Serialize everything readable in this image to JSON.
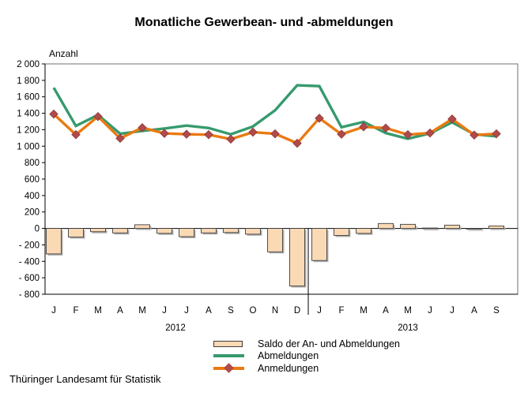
{
  "title": "Monatliche Gewerbean- und -abmeldungen",
  "source": "Thüringer Landesamt für Statistik",
  "chart_data": {
    "type": "bar+line",
    "title": "Monatliche Gewerbean- und -abmeldungen",
    "ylabel": "Anzahl",
    "xlabel": "",
    "ylim": [
      -800,
      2000
    ],
    "ytick_step": 200,
    "ytick_labels": [
      "2 000",
      "1 800",
      "1 600",
      "1 400",
      "1 200",
      "1 000",
      "800",
      "600",
      "400",
      "200",
      "0",
      "- 200",
      "- 400",
      "- 600",
      "- 800"
    ],
    "categories": [
      "J",
      "F",
      "M",
      "A",
      "M",
      "J",
      "J",
      "A",
      "S",
      "O",
      "N",
      "D",
      "J",
      "F",
      "M",
      "A",
      "M",
      "J",
      "J",
      "A",
      "S"
    ],
    "year_groups": [
      {
        "label": "2012",
        "span": 12
      },
      {
        "label": "2013",
        "span": 9
      }
    ],
    "grid": "zero-line-only",
    "legend_position": "bottom",
    "series": [
      {
        "name": "Saldo der An- und Abmeldungen",
        "type": "bar",
        "color": "#FAD9B5",
        "border_color": "#3F3F3F",
        "shadow_color": "#B0B0B0",
        "values": [
          -310,
          -105,
          -40,
          -55,
          45,
          -60,
          -100,
          -55,
          -50,
          -70,
          -285,
          -700,
          -390,
          -85,
          -60,
          60,
          50,
          5,
          40,
          -10,
          30
        ]
      },
      {
        "name": "Abmeldungen",
        "type": "line",
        "color": "#369A6E",
        "values": [
          1710,
          1245,
          1380,
          1150,
          1185,
          1215,
          1250,
          1220,
          1145,
          1240,
          1435,
          1740,
          1730,
          1230,
          1295,
          1160,
          1090,
          1155,
          1290,
          1145,
          1120
        ]
      },
      {
        "name": "Anmeldungen",
        "type": "line",
        "marker": "diamond",
        "color": "#EA7A12",
        "marker_color": "#B14A49",
        "marker_border_color": "#8D3A3B",
        "values": [
          1390,
          1140,
          1360,
          1095,
          1225,
          1155,
          1145,
          1140,
          1085,
          1170,
          1150,
          1035,
          1340,
          1145,
          1235,
          1220,
          1140,
          1160,
          1330,
          1135,
          1150
        ]
      }
    ]
  }
}
